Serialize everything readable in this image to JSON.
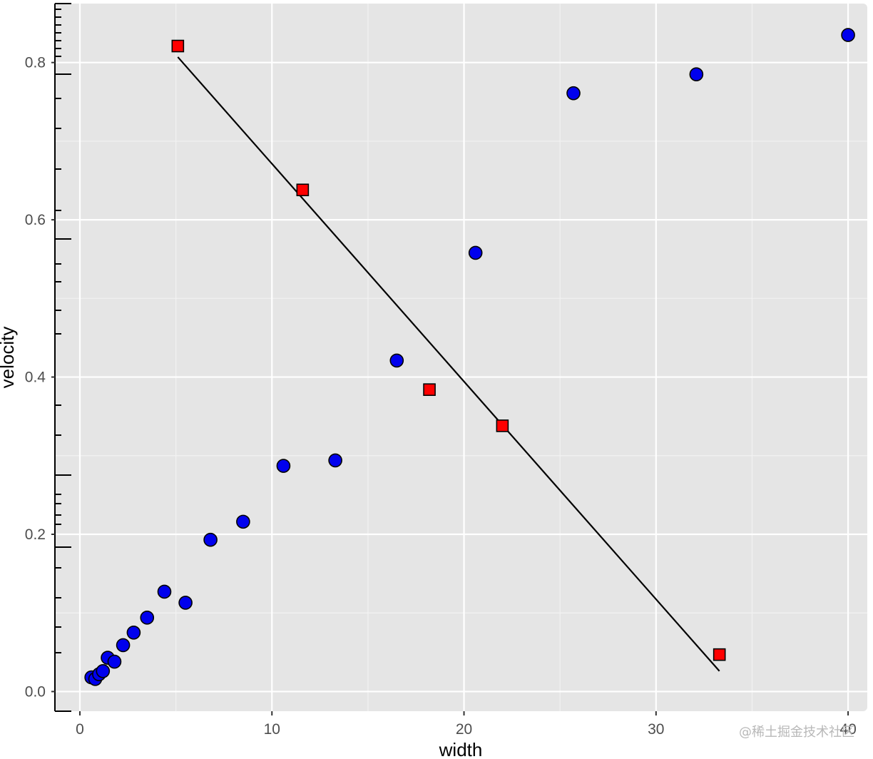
{
  "chart_data": {
    "type": "scatter",
    "xlabel": "width",
    "ylabel": "velocity",
    "xlim": [
      -1.3,
      41.0
    ],
    "ylim": [
      -0.025,
      0.875
    ],
    "x_ticks": [
      0,
      10,
      20,
      30,
      40
    ],
    "y_ticks": [
      0.0,
      0.2,
      0.4,
      0.6,
      0.8
    ],
    "x_tick_labels": [
      "0",
      "10",
      "20",
      "30",
      "40"
    ],
    "y_tick_labels": [
      "0.0",
      "0.2",
      "0.4",
      "0.6",
      "0.8"
    ],
    "grid": true,
    "panel_background": "#e5e5e5",
    "grid_color": "#ffffff",
    "series": [
      {
        "marker": "circle",
        "color": "#0000ee",
        "points": [
          {
            "x": 0.6,
            "y": 0.018
          },
          {
            "x": 0.8,
            "y": 0.016
          },
          {
            "x": 1.0,
            "y": 0.022
          },
          {
            "x": 1.2,
            "y": 0.026
          },
          {
            "x": 1.45,
            "y": 0.043
          },
          {
            "x": 1.8,
            "y": 0.038
          },
          {
            "x": 2.25,
            "y": 0.059
          },
          {
            "x": 2.8,
            "y": 0.075
          },
          {
            "x": 3.5,
            "y": 0.094
          },
          {
            "x": 4.4,
            "y": 0.127
          },
          {
            "x": 5.5,
            "y": 0.113
          },
          {
            "x": 6.8,
            "y": 0.193
          },
          {
            "x": 8.5,
            "y": 0.216
          },
          {
            "x": 10.6,
            "y": 0.287
          },
          {
            "x": 13.3,
            "y": 0.294
          },
          {
            "x": 16.5,
            "y": 0.421
          },
          {
            "x": 20.6,
            "y": 0.558
          },
          {
            "x": 25.7,
            "y": 0.761
          },
          {
            "x": 32.1,
            "y": 0.785
          },
          {
            "x": 40.0,
            "y": 0.835
          }
        ]
      },
      {
        "marker": "square",
        "color": "#ff0000",
        "points": [
          {
            "x": 5.1,
            "y": 0.821
          },
          {
            "x": 11.6,
            "y": 0.638
          },
          {
            "x": 18.2,
            "y": 0.384
          },
          {
            "x": 22.0,
            "y": 0.338
          },
          {
            "x": 33.3,
            "y": 0.047
          }
        ]
      }
    ],
    "line": {
      "color": "#000000",
      "points": [
        {
          "x": 5.1,
          "y": 0.807
        },
        {
          "x": 33.3,
          "y": 0.026
        }
      ]
    },
    "left_axis_extra_ticks": [
      0.8,
      0.6,
      0.4,
      0.2
    ]
  },
  "watermark": "@稀土掘金技术社区"
}
